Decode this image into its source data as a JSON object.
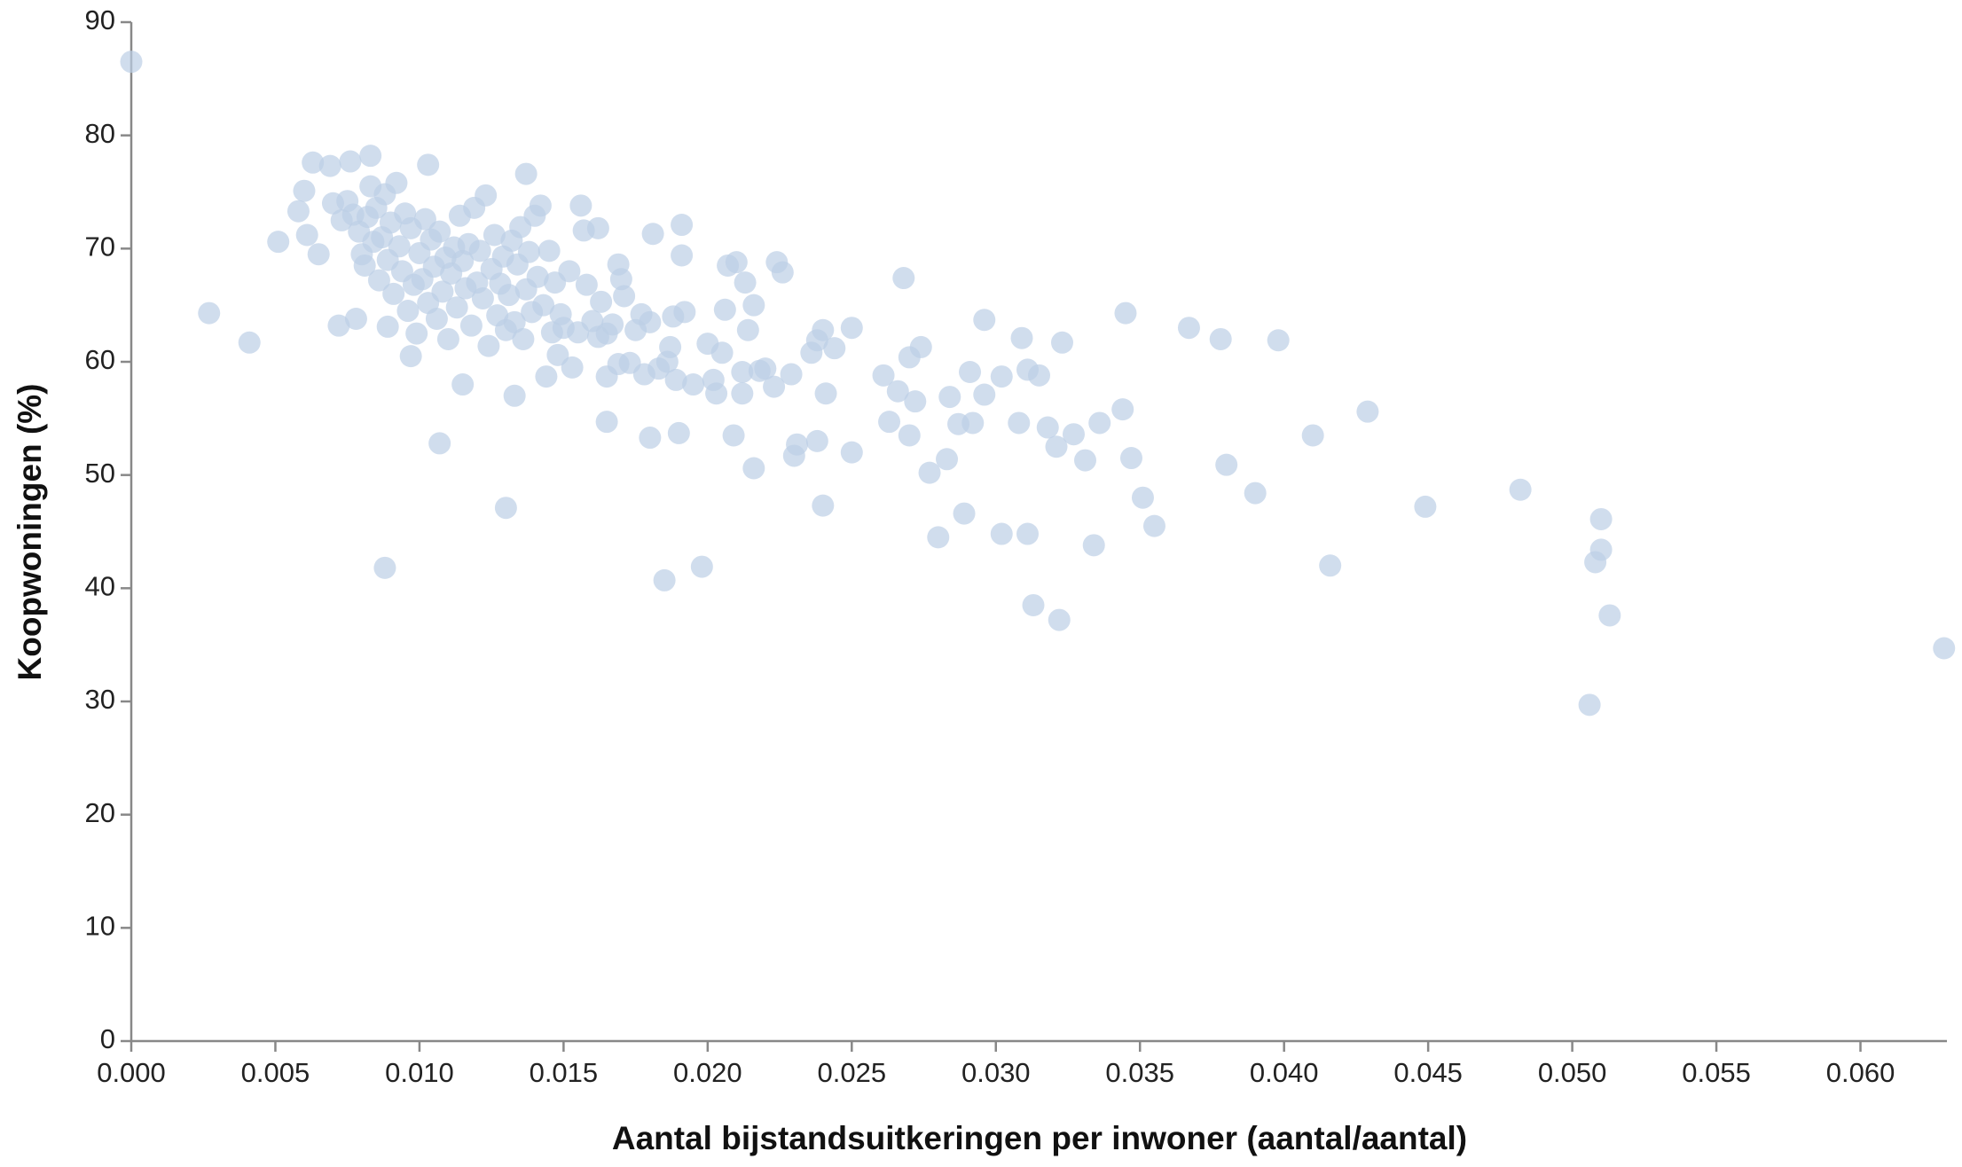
{
  "chart_data": {
    "type": "scatter",
    "x_label": "Aantal bijstandsuitkeringen per inwoner (aantal/aantal)",
    "y_label": "Koopwoningen (%)",
    "color": "#bccfe6",
    "xlim": [
      0,
      0.063
    ],
    "ylim": [
      0,
      90
    ],
    "xticks": [
      {
        "value": 0,
        "label": "0.000"
      },
      {
        "value": 0.005,
        "label": "0.005"
      },
      {
        "value": 0.01,
        "label": "0.010"
      },
      {
        "value": 0.015,
        "label": "0.015"
      },
      {
        "value": 0.02,
        "label": "0.020"
      },
      {
        "value": 0.025,
        "label": "0.025"
      },
      {
        "value": 0.03,
        "label": "0.030"
      },
      {
        "value": 0.035,
        "label": "0.035"
      },
      {
        "value": 0.04,
        "label": "0.040"
      },
      {
        "value": 0.045,
        "label": "0.045"
      },
      {
        "value": 0.05,
        "label": "0.050"
      },
      {
        "value": 0.055,
        "label": "0.055"
      },
      {
        "value": 0.06,
        "label": "0.060"
      }
    ],
    "yticks": [
      0,
      10,
      20,
      30,
      40,
      50,
      60,
      70,
      80,
      90
    ],
    "x": [
      0.0,
      0.0027,
      0.0041,
      0.0051,
      0.0058,
      0.006,
      0.0063,
      0.0061,
      0.0065,
      0.0069,
      0.0072,
      0.0076,
      0.0078,
      0.0083,
      0.0088,
      0.0089,
      0.0097,
      0.0103,
      0.0107,
      0.0115,
      0.013,
      0.0133,
      0.0137,
      0.0142,
      0.0156,
      0.0162,
      0.0165,
      0.0165,
      0.0169,
      0.0181,
      0.018,
      0.0185,
      0.0191,
      0.0191,
      0.019,
      0.0192,
      0.0198,
      0.02,
      0.0203,
      0.0206,
      0.0207,
      0.0209,
      0.021,
      0.0213,
      0.0216,
      0.0214,
      0.0216,
      0.0218,
      0.0223,
      0.0224,
      0.0226,
      0.023,
      0.0231,
      0.0238,
      0.0238,
      0.024,
      0.024,
      0.0241,
      0.0244,
      0.025,
      0.025,
      0.0261,
      0.0263,
      0.0266,
      0.0268,
      0.027,
      0.027,
      0.0272,
      0.0274,
      0.0277,
      0.028,
      0.0283,
      0.0284,
      0.0287,
      0.0289,
      0.0291,
      0.0292,
      0.0296,
      0.0296,
      0.0302,
      0.0302,
      0.0308,
      0.0309,
      0.0311,
      0.0311,
      0.0313,
      0.0315,
      0.0318,
      0.0321,
      0.0322,
      0.0323,
      0.0327,
      0.0331,
      0.0334,
      0.0336,
      0.0344,
      0.0345,
      0.0347,
      0.0351,
      0.0355,
      0.0367,
      0.0378,
      0.038,
      0.039,
      0.0398,
      0.041,
      0.0416,
      0.0429,
      0.0449,
      0.0482,
      0.0506,
      0.0508,
      0.051,
      0.051,
      0.0513,
      0.0629,
      0.007,
      0.0073,
      0.0075,
      0.0077,
      0.0079,
      0.008,
      0.0081,
      0.0082,
      0.0083,
      0.0084,
      0.0085,
      0.0086,
      0.0087,
      0.0088,
      0.0089,
      0.009,
      0.0091,
      0.0092,
      0.0093,
      0.0094,
      0.0095,
      0.0096,
      0.0097,
      0.0098,
      0.0099,
      0.01,
      0.0101,
      0.0102,
      0.0103,
      0.0104,
      0.0105,
      0.0106,
      0.0107,
      0.0108,
      0.0109,
      0.011,
      0.0111,
      0.0112,
      0.0113,
      0.0114,
      0.0115,
      0.0116,
      0.0117,
      0.0118,
      0.0119,
      0.012,
      0.0121,
      0.0122,
      0.0123,
      0.0124,
      0.0125,
      0.0126,
      0.0127,
      0.0128,
      0.0129,
      0.013,
      0.0131,
      0.0132,
      0.0133,
      0.0134,
      0.0135,
      0.0136,
      0.0137,
      0.0138,
      0.0139,
      0.014,
      0.0141,
      0.0143,
      0.0144,
      0.0145,
      0.0146,
      0.0147,
      0.0148,
      0.0149,
      0.015,
      0.0152,
      0.0153,
      0.0155,
      0.0157,
      0.0158,
      0.016,
      0.0162,
      0.0163,
      0.0165,
      0.0167,
      0.0169,
      0.017,
      0.0171,
      0.0173,
      0.0175,
      0.0177,
      0.0178,
      0.018,
      0.0183,
      0.0186,
      0.0187,
      0.0188,
      0.0189,
      0.0195,
      0.0202,
      0.0205,
      0.0212,
      0.0212,
      0.022,
      0.0229,
      0.0236
    ],
    "values": [
      86.5,
      64.3,
      61.7,
      70.6,
      73.3,
      75.1,
      77.6,
      71.2,
      69.5,
      77.3,
      63.2,
      77.7,
      63.8,
      78.2,
      41.8,
      63.1,
      60.5,
      77.4,
      52.8,
      58.0,
      47.1,
      57.0,
      76.6,
      73.8,
      73.8,
      71.8,
      58.7,
      54.7,
      68.6,
      71.3,
      53.3,
      40.7,
      72.1,
      69.4,
      53.7,
      64.4,
      41.9,
      61.6,
      57.2,
      64.6,
      68.5,
      53.5,
      68.8,
      67.0,
      65.0,
      62.8,
      50.6,
      59.2,
      57.8,
      68.8,
      67.9,
      51.7,
      52.7,
      53.0,
      61.9,
      62.8,
      47.3,
      57.2,
      61.2,
      63.0,
      52.0,
      58.8,
      54.7,
      57.4,
      67.4,
      60.4,
      53.5,
      56.5,
      61.3,
      50.2,
      44.5,
      51.4,
      56.9,
      54.5,
      46.6,
      59.1,
      54.6,
      63.7,
      57.1,
      58.7,
      44.8,
      54.6,
      62.1,
      59.3,
      44.8,
      38.5,
      58.8,
      54.2,
      52.5,
      37.2,
      61.7,
      53.6,
      51.3,
      43.8,
      54.6,
      55.8,
      64.3,
      51.5,
      48.0,
      45.5,
      63.0,
      62.0,
      50.9,
      48.4,
      61.9,
      53.5,
      42.0,
      55.6,
      47.2,
      48.7,
      29.7,
      42.3,
      46.1,
      43.4,
      37.6,
      34.7,
      74.0,
      72.5,
      74.2,
      73.0,
      71.5,
      69.5,
      68.5,
      72.8,
      75.5,
      70.6,
      73.6,
      67.2,
      71.0,
      74.8,
      69.0,
      72.3,
      66.0,
      75.8,
      70.2,
      68.0,
      73.1,
      64.5,
      71.8,
      66.8,
      62.5,
      69.6,
      67.3,
      72.6,
      65.2,
      70.8,
      68.4,
      63.8,
      71.5,
      66.2,
      69.2,
      62.0,
      67.8,
      70.1,
      64.8,
      72.9,
      68.9,
      66.5,
      70.4,
      63.2,
      73.6,
      67.0,
      69.8,
      65.6,
      74.7,
      61.4,
      68.2,
      71.2,
      64.1,
      66.9,
      69.3,
      62.8,
      65.9,
      70.7,
      63.5,
      68.6,
      71.9,
      62.0,
      66.4,
      69.7,
      64.4,
      72.9,
      67.5,
      65.0,
      58.7,
      69.8,
      62.6,
      67.0,
      60.6,
      64.2,
      63.0,
      68.0,
      59.5,
      62.6,
      71.6,
      66.8,
      63.6,
      62.2,
      65.3,
      62.5,
      63.3,
      59.8,
      67.3,
      65.8,
      59.9,
      62.8,
      64.2,
      58.9,
      63.5,
      59.4,
      60.0,
      61.3,
      64.0,
      58.4,
      58.0,
      58.4,
      60.8,
      57.2,
      59.1,
      59.4,
      58.9,
      60.8
    ]
  }
}
